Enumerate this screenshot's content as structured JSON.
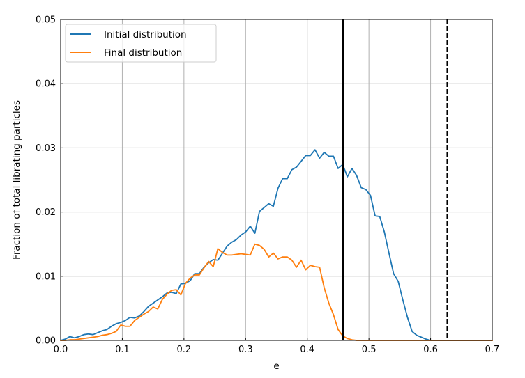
{
  "chart_data": {
    "type": "line",
    "xlabel": "e",
    "ylabel": "Fraction of total librating particles",
    "xlim": [
      0.0,
      0.7
    ],
    "ylim": [
      0.0,
      0.05
    ],
    "xticks": [
      "0.0",
      "0.1",
      "0.2",
      "0.3",
      "0.4",
      "0.5",
      "0.6",
      "0.7"
    ],
    "yticks": [
      "0.00",
      "0.01",
      "0.02",
      "0.03",
      "0.04",
      "0.05"
    ],
    "grid": true,
    "legend_position": "upper-left",
    "series": [
      {
        "name": "Initial distribution",
        "color": "#1f77b4",
        "x": [
          0.0,
          0.0075,
          0.015,
          0.0225,
          0.03,
          0.0375,
          0.045,
          0.0525,
          0.06,
          0.0675,
          0.075,
          0.0825,
          0.09,
          0.0975,
          0.105,
          0.1125,
          0.12,
          0.1275,
          0.135,
          0.1425,
          0.15,
          0.1575,
          0.165,
          0.1725,
          0.18,
          0.1875,
          0.195,
          0.2025,
          0.21,
          0.2175,
          0.225,
          0.2325,
          0.24,
          0.2475,
          0.255,
          0.2625,
          0.27,
          0.2775,
          0.285,
          0.2925,
          0.3,
          0.3075,
          0.315,
          0.3225,
          0.33,
          0.3375,
          0.345,
          0.3525,
          0.36,
          0.3675,
          0.375,
          0.3825,
          0.39,
          0.3975,
          0.405,
          0.4125,
          0.42,
          0.4275,
          0.435,
          0.4425,
          0.45,
          0.4575,
          0.465,
          0.4725,
          0.48,
          0.4875,
          0.495,
          0.5025,
          0.51,
          0.5175,
          0.525,
          0.5325,
          0.54,
          0.5475,
          0.555,
          0.5625,
          0.57,
          0.5775,
          0.585,
          0.5925,
          0.6,
          0.6075,
          0.615,
          0.6225,
          0.63,
          0.6375,
          0.645,
          0.6525,
          0.66,
          0.6675,
          0.675,
          0.6825,
          0.69,
          0.6975,
          0.7
        ],
        "y": [
          0.0,
          0.0002,
          0.0006,
          0.0004,
          0.0006,
          0.0009,
          0.001,
          0.0009,
          0.0012,
          0.0015,
          0.0017,
          0.0022,
          0.0026,
          0.0028,
          0.0031,
          0.0036,
          0.0035,
          0.0038,
          0.0045,
          0.0053,
          0.0058,
          0.0063,
          0.0068,
          0.0074,
          0.0075,
          0.0073,
          0.0088,
          0.0089,
          0.0093,
          0.0104,
          0.0104,
          0.0114,
          0.0121,
          0.0126,
          0.0125,
          0.0136,
          0.0147,
          0.0153,
          0.0157,
          0.0164,
          0.0169,
          0.0178,
          0.0167,
          0.0201,
          0.0207,
          0.0213,
          0.0209,
          0.0237,
          0.0252,
          0.0252,
          0.0266,
          0.027,
          0.0279,
          0.0288,
          0.0288,
          0.0297,
          0.0284,
          0.0293,
          0.0287,
          0.0287,
          0.0268,
          0.0274,
          0.0255,
          0.0268,
          0.0257,
          0.0238,
          0.0235,
          0.0226,
          0.0194,
          0.0193,
          0.0169,
          0.0136,
          0.0104,
          0.0092,
          0.0063,
          0.0036,
          0.0014,
          0.0008,
          0.0005,
          0.0002,
          0.0,
          0.0,
          0.0,
          0.0,
          0.0,
          0.0,
          0.0,
          0.0,
          0.0,
          0.0,
          0.0,
          0.0,
          0.0,
          0.0,
          0.0
        ]
      },
      {
        "name": "Final distribution",
        "color": "#ff7f0e",
        "x": [
          0.0,
          0.0075,
          0.015,
          0.0225,
          0.03,
          0.0375,
          0.045,
          0.0525,
          0.06,
          0.0675,
          0.075,
          0.0825,
          0.09,
          0.0975,
          0.105,
          0.1125,
          0.12,
          0.1275,
          0.135,
          0.1425,
          0.15,
          0.1575,
          0.165,
          0.1725,
          0.18,
          0.1875,
          0.195,
          0.2025,
          0.21,
          0.2175,
          0.225,
          0.2325,
          0.24,
          0.2475,
          0.255,
          0.2625,
          0.27,
          0.2775,
          0.285,
          0.2925,
          0.3,
          0.3075,
          0.315,
          0.3225,
          0.33,
          0.3375,
          0.345,
          0.3525,
          0.36,
          0.3675,
          0.375,
          0.3825,
          0.39,
          0.3975,
          0.405,
          0.4125,
          0.42,
          0.4275,
          0.435,
          0.4425,
          0.45,
          0.4575,
          0.465,
          0.4725,
          0.48,
          0.4875,
          0.495,
          0.5025,
          0.51,
          0.5175,
          0.525,
          0.5325,
          0.54,
          0.5475,
          0.555,
          0.5625,
          0.57,
          0.5775,
          0.585,
          0.5925,
          0.6,
          0.6075,
          0.615,
          0.6225,
          0.63,
          0.6375,
          0.645,
          0.6525,
          0.66,
          0.6675,
          0.675,
          0.6825,
          0.69,
          0.6975,
          0.7
        ],
        "y": [
          0.0,
          0.0,
          0.0001,
          0.0001,
          0.0002,
          0.0003,
          0.0004,
          0.0005,
          0.0006,
          0.0008,
          0.0009,
          0.0011,
          0.0014,
          0.0024,
          0.0022,
          0.0022,
          0.0031,
          0.0036,
          0.0041,
          0.0045,
          0.0052,
          0.0049,
          0.0064,
          0.0072,
          0.0078,
          0.0079,
          0.0071,
          0.0089,
          0.0097,
          0.0102,
          0.0102,
          0.0113,
          0.0123,
          0.0115,
          0.0143,
          0.0137,
          0.0133,
          0.0133,
          0.0134,
          0.0135,
          0.0134,
          0.0133,
          0.015,
          0.0148,
          0.0142,
          0.013,
          0.0136,
          0.0127,
          0.013,
          0.013,
          0.0125,
          0.0114,
          0.0125,
          0.011,
          0.0117,
          0.0115,
          0.0114,
          0.0082,
          0.0058,
          0.004,
          0.0017,
          0.0007,
          0.0003,
          0.0001,
          0.0,
          0.0,
          0.0,
          0.0,
          0.0,
          0.0,
          0.0,
          0.0,
          0.0,
          0.0,
          0.0,
          0.0,
          0.0,
          0.0,
          0.0,
          0.0,
          0.0,
          0.0,
          0.0,
          0.0,
          0.0,
          0.0,
          0.0,
          0.0,
          0.0,
          0.0,
          0.0,
          0.0,
          0.0,
          0.0,
          0.0
        ]
      }
    ],
    "vlines": [
      {
        "x": 0.458,
        "style": "solid",
        "color": "#000000"
      },
      {
        "x": 0.627,
        "style": "dashed",
        "color": "#000000"
      }
    ]
  }
}
